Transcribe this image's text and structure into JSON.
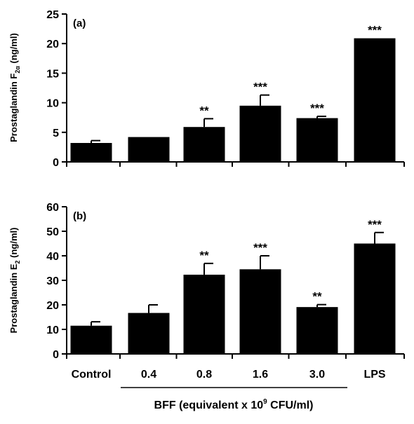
{
  "chart_data": [
    {
      "type": "bar",
      "panel_label": "(a)",
      "ylabel": {
        "main": "Prostaglandin F",
        "sub": "2α",
        "tail": " (ng/ml)"
      },
      "ylim": [
        0,
        25
      ],
      "yticks": [
        0,
        5,
        10,
        15,
        20,
        25
      ],
      "categories": [
        "Control",
        "0.4",
        "0.8",
        "1.6",
        "3.0",
        "LPS"
      ],
      "values": [
        3.2,
        4.2,
        5.9,
        9.5,
        7.4,
        20.9
      ],
      "errors": [
        0.4,
        0.0,
        1.4,
        1.8,
        0.3,
        0.0
      ],
      "significance": [
        "",
        "",
        "**",
        "***",
        "***",
        "***"
      ]
    },
    {
      "type": "bar",
      "panel_label": "(b)",
      "ylabel": {
        "main": "Prostaglandin E",
        "sub": "2",
        "tail": " (ng/ml)"
      },
      "ylim": [
        0,
        60
      ],
      "yticks": [
        0,
        10,
        20,
        30,
        40,
        50,
        60
      ],
      "categories": [
        "Control",
        "0.4",
        "0.8",
        "1.6",
        "3.0",
        "LPS"
      ],
      "values": [
        11.5,
        16.7,
        32.3,
        34.5,
        19.1,
        45.0
      ],
      "errors": [
        1.6,
        3.3,
        4.6,
        5.5,
        1.0,
        4.5
      ],
      "significance": [
        "",
        "",
        "**",
        "***",
        "**",
        "***"
      ]
    }
  ],
  "xgroup_label": {
    "main": "BFF (equivalent x 10",
    "sup": "9",
    "tail": " CFU/ml)"
  }
}
